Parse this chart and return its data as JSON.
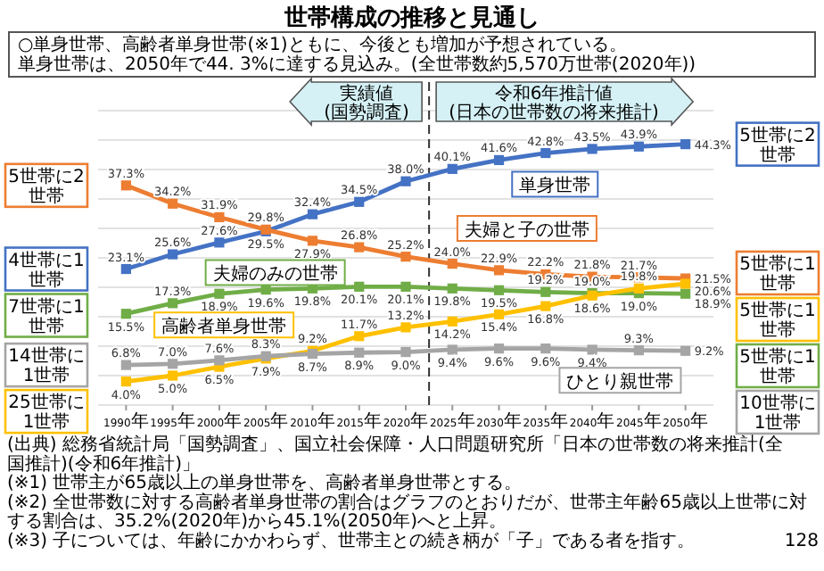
{
  "chart_data": {
    "type": "line",
    "title": "世帯構成の推移と見通し",
    "subtitle": "○単身世帯、高齢者単身世帯(※1)ともに、今後とも増加が予想されている。単身世帯は、2050年で44. 3%に達する見込み。(全世帯数約5,570万世帯(2020年))",
    "x": [
      1990,
      1995,
      2000,
      2005,
      2010,
      2015,
      2020,
      2025,
      2030,
      2035,
      2040,
      2045,
      2050
    ],
    "xlim": [
      1987,
      2053
    ],
    "xticks": [
      {
        "value": 1990,
        "label": "1990年"
      },
      {
        "value": 1995,
        "label": "1995年"
      },
      {
        "value": 2000,
        "label": "2000年"
      },
      {
        "value": 2005,
        "label": "2005年"
      },
      {
        "value": 2010,
        "label": "2010年"
      },
      {
        "value": 2015,
        "label": "2015年"
      },
      {
        "value": 2020,
        "label": "2020年"
      },
      {
        "value": 2025,
        "label": "2025年"
      },
      {
        "value": 2030,
        "label": "2030年"
      },
      {
        "value": 2035,
        "label": "2035年"
      },
      {
        "value": 2040,
        "label": "2040年"
      },
      {
        "value": 2045,
        "label": "2045年"
      },
      {
        "value": 2050,
        "label": "2050年"
      }
    ],
    "ylim": [
      0,
      50
    ],
    "yticks": [
      {
        "value": 0,
        "label": null
      },
      {
        "value": 5,
        "label": null
      },
      {
        "value": 10,
        "label": null
      },
      {
        "value": 15,
        "label": null
      },
      {
        "value": 20,
        "label": null
      },
      {
        "value": 25,
        "label": null
      },
      {
        "value": 30,
        "label": null
      },
      {
        "value": 35,
        "label": null
      },
      {
        "value": 40,
        "label": null
      },
      {
        "value": 45,
        "label": null
      },
      {
        "value": 50,
        "label": null
      }
    ],
    "grid": "y",
    "marker": "square",
    "line_style": "solid",
    "series": [
      {
        "name": "単身世帯",
        "color": "#4472c4",
        "values": [
          23.1,
          25.6,
          27.6,
          29.5,
          32.4,
          34.5,
          38.0,
          40.1,
          41.6,
          42.8,
          43.5,
          43.9,
          44.3
        ],
        "value_labels": [
          "23.1%",
          "25.6%",
          "27.6%",
          "29.5%",
          "32.4%",
          "34.5%",
          "38.0%",
          "40.1%",
          "41.6%",
          "42.8%",
          "43.5%",
          "43.9%",
          "44.3%"
        ]
      },
      {
        "name": "夫婦と子の世帯",
        "color": "#ed7d31",
        "values": [
          37.3,
          34.2,
          31.9,
          29.8,
          27.9,
          26.8,
          25.2,
          24.0,
          22.9,
          22.2,
          21.8,
          21.7,
          21.5
        ],
        "value_labels": [
          "37.3%",
          "34.2%",
          "31.9%",
          "29.8%",
          "27.9%",
          "26.8%",
          "25.2%",
          "24.0%",
          "22.9%",
          "22.2%",
          "21.8%",
          "21.7%",
          "21.5%"
        ]
      },
      {
        "name": "夫婦のみの世帯",
        "color": "#70ad47",
        "values": [
          15.5,
          17.3,
          18.9,
          19.6,
          19.8,
          20.1,
          20.1,
          19.8,
          19.5,
          19.2,
          19.0,
          19.0,
          18.9
        ],
        "value_labels": [
          "15.5%",
          "17.3%",
          "18.9%",
          "19.6%",
          "19.8%",
          "20.1%",
          "20.1%",
          "19.8%",
          "19.5%",
          "19.2%",
          "19.0%",
          "19.0%",
          "18.9%"
        ]
      },
      {
        "name": "高齢者単身世帯",
        "color": "#ffc000",
        "values": [
          4.0,
          5.0,
          6.5,
          7.9,
          9.2,
          11.7,
          13.2,
          14.2,
          15.4,
          16.8,
          18.6,
          19.8,
          20.6
        ],
        "value_labels": [
          "4.0%",
          "5.0%",
          "6.5%",
          "7.9%",
          "9.2%",
          "11.7%",
          "13.2%",
          "14.2%",
          "15.4%",
          "16.8%",
          "18.6%",
          "19.8%",
          "20.6%"
        ]
      },
      {
        "name": "ひとり親世帯",
        "color": "#a5a5a5",
        "values": [
          6.8,
          7.0,
          7.6,
          8.3,
          8.7,
          8.9,
          9.0,
          9.4,
          9.6,
          9.6,
          9.4,
          9.3,
          9.2
        ],
        "value_labels": [
          "6.8%",
          "7.0%",
          "7.6%",
          "8.3%",
          "8.7%",
          "8.9%",
          "9.0%",
          "9.4%",
          "9.6%",
          "9.6%",
          "9.4%",
          "9.3%",
          "9.2%"
        ]
      }
    ],
    "ref_lines": [
      {
        "axis": "x",
        "value": 2022.5,
        "line_style": "dashed",
        "color": "#333333"
      }
    ],
    "annotations": [
      "実績値\n(国勢調査)",
      "令和6年推計値\n(日本の世帯数の将来推計)",
      "5世帯に2世帯",
      "4世帯に1世帯",
      "7世帯に1世帯",
      "14世帯に1世帯",
      "25世帯に1世帯",
      "5世帯に2世帯",
      "5世帯に1世帯",
      "5世帯に1世帯",
      "5世帯に1世帯",
      "10世帯に1世帯",
      "(出典) 総務省統計局「国勢調査」、国立社会保障・人口問題研究所「日本の世帯数の将来推計(全国推計)(令和6年推計)」",
      "(※1) 世帯主が65歳以上の単身世帯を、高齢者単身世帯とする。",
      "(※2) 全世帯数に対する高齢者単身世帯の割合はグラフのとおりだが、世帯主年齢65歳以上世帯に対する割合は、35.2%(2020年)から45.1%(2050年)へと上昇。",
      "(※3) 子については、年齢にかかわらず、世帯主との続き柄が「子」である者を指す。",
      "128"
    ]
  }
}
